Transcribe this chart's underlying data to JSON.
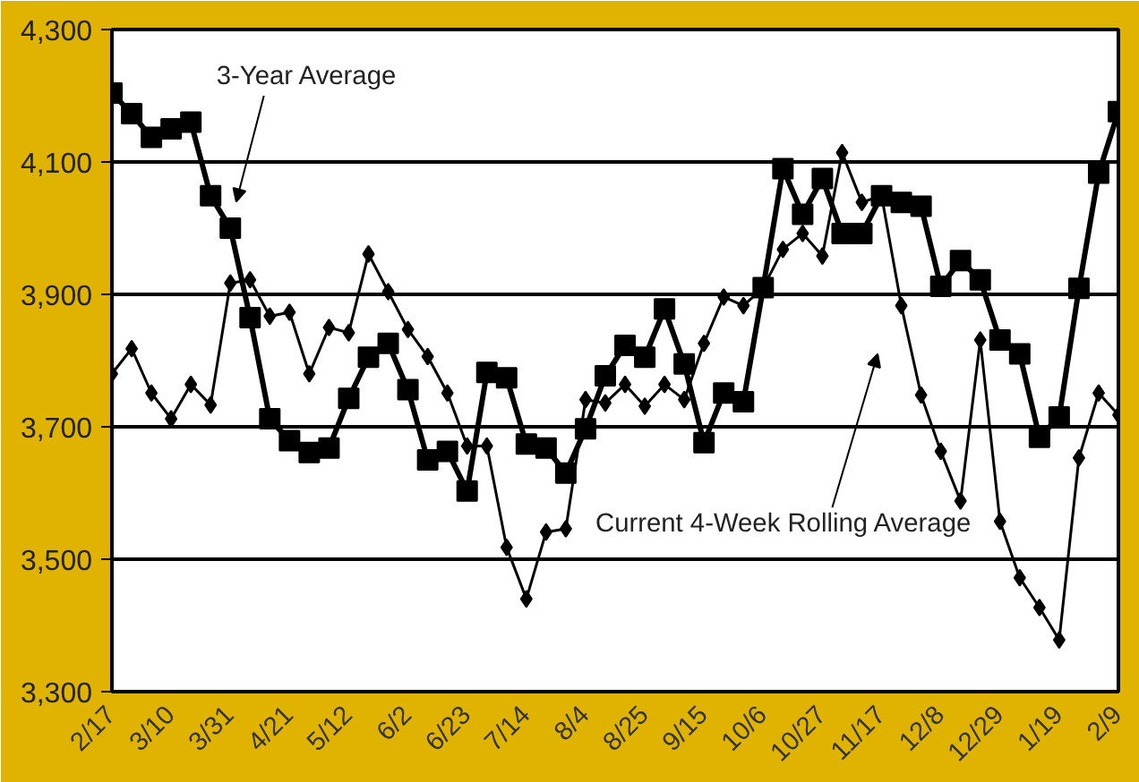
{
  "chart_data": {
    "type": "line",
    "categories": [
      "2/17",
      null,
      null,
      "3/10",
      null,
      null,
      "3/31",
      null,
      null,
      "4/21",
      null,
      null,
      "5/12",
      null,
      null,
      "6/2",
      null,
      null,
      "6/23",
      null,
      null,
      "7/14",
      null,
      null,
      "8/4",
      null,
      null,
      "8/25",
      null,
      null,
      "9/15",
      null,
      null,
      "10/6",
      null,
      null,
      "10/27",
      null,
      null,
      "11/17",
      null,
      null,
      "12/8",
      null,
      null,
      "12/29",
      null,
      null,
      "1/19",
      null,
      null,
      "2/9"
    ],
    "series": [
      {
        "name": "3-Year Average",
        "color": "#000000",
        "marker": "square",
        "values": [
          4204,
          4173,
          4137,
          4150,
          4160,
          4049,
          4000,
          3865,
          3712,
          3679,
          3661,
          3668,
          3743,
          3805,
          3826,
          3756,
          3650,
          3663,
          3603,
          3782,
          3774,
          3674,
          3668,
          3630,
          3697,
          3777,
          3823,
          3805,
          3878,
          3795,
          3676,
          3751,
          3738,
          3910,
          4090,
          4021,
          4075,
          3992,
          3992,
          4049,
          4039,
          4033,
          3912,
          3951,
          3922,
          3831,
          3810,
          3684,
          3715,
          3909,
          4083,
          4176
        ]
      },
      {
        "name": "Current 4-Week Rolling Average",
        "color": "#000000",
        "marker": "diamond",
        "values": [
          3780,
          3818,
          3751,
          3712,
          3764,
          3733,
          3917,
          3922,
          3867,
          3873,
          3780,
          3850,
          3842,
          3961,
          3904,
          3847,
          3806,
          3751,
          3671,
          3671,
          3518,
          3440,
          3541,
          3546,
          3741,
          3736,
          3764,
          3731,
          3764,
          3741,
          3826,
          3896,
          3883,
          3910,
          3968,
          3992,
          3958,
          4114,
          4039,
          4049,
          3883,
          3748,
          3663,
          3588,
          3831,
          3557,
          3472,
          3427,
          3378,
          3653,
          3751,
          3718
        ]
      }
    ],
    "ylim": [
      3300,
      4300
    ],
    "yticks": [
      {
        "value": 3300,
        "label": "3,300"
      },
      {
        "value": 3500,
        "label": "3,500"
      },
      {
        "value": 3700,
        "label": "3,700"
      },
      {
        "value": 3900,
        "label": "3,900"
      },
      {
        "value": 4100,
        "label": "4,100"
      },
      {
        "value": 4300,
        "label": "4,300"
      }
    ],
    "grid": "y"
  }
}
